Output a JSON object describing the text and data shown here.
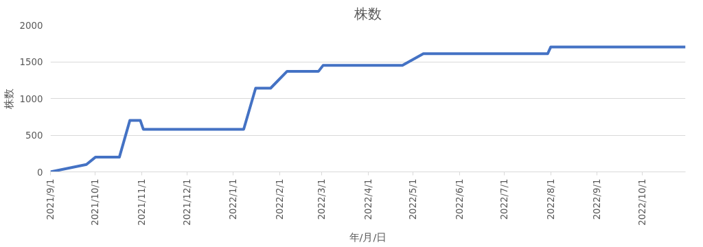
{
  "chart_data": {
    "type": "line",
    "title": "株数",
    "xlabel": "年/月/日",
    "ylabel": "株数",
    "x": [
      "2021-09-01",
      "2021-09-25",
      "2021-10-01",
      "2021-10-17",
      "2021-10-24",
      "2021-10-31",
      "2021-11-02",
      "2022-01-08",
      "2022-01-16",
      "2022-01-26",
      "2022-02-06",
      "2022-02-27",
      "2022-03-02",
      "2022-04-24",
      "2022-05-08",
      "2022-07-30",
      "2022-08-01",
      "2022-10-30"
    ],
    "series": [
      {
        "color": "#4472c4",
        "values": [
          0,
          100,
          200,
          200,
          700,
          700,
          580,
          580,
          1140,
          1140,
          1370,
          1370,
          1450,
          1450,
          1610,
          1610,
          1700,
          1700
        ]
      }
    ],
    "xlim": [
      "2021-09-01",
      "2022-10-30"
    ],
    "xticks": [
      {
        "value": "2021-09-01",
        "label": "2021/9/1"
      },
      {
        "value": "2021-10-01",
        "label": "2021/10/1"
      },
      {
        "value": "2021-11-01",
        "label": "2021/11/1"
      },
      {
        "value": "2021-12-01",
        "label": "2021/12/1"
      },
      {
        "value": "2022-01-01",
        "label": "2022/1/1"
      },
      {
        "value": "2022-02-01",
        "label": "2022/2/1"
      },
      {
        "value": "2022-03-01",
        "label": "2022/3/1"
      },
      {
        "value": "2022-04-01",
        "label": "2022/4/1"
      },
      {
        "value": "2022-05-01",
        "label": "2022/5/1"
      },
      {
        "value": "2022-06-01",
        "label": "2022/6/1"
      },
      {
        "value": "2022-07-01",
        "label": "2022/7/1"
      },
      {
        "value": "2022-08-01",
        "label": "2022/8/1"
      },
      {
        "value": "2022-09-01",
        "label": "2022/9/1"
      },
      {
        "value": "2022-10-01",
        "label": "2022/10/1"
      }
    ],
    "ylim": [
      0,
      2000
    ],
    "yticks": [
      0,
      500,
      1000,
      1500,
      2000
    ],
    "grid": "y",
    "marker": "none",
    "line_style": "solid"
  }
}
